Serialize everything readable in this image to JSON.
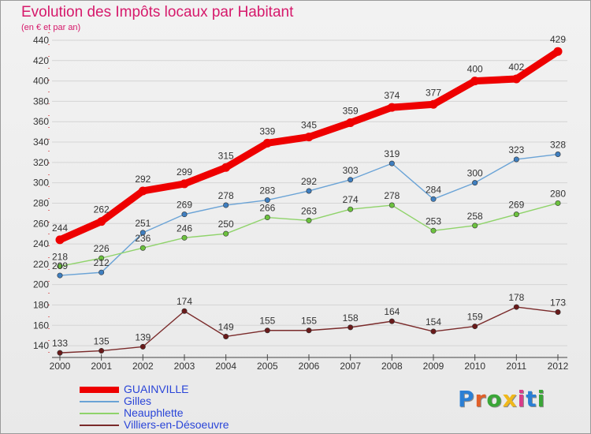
{
  "header": {
    "title": "Evolution des Impôts locaux par Habitant",
    "subtitle": "(en € et par an)"
  },
  "logo": {
    "text": "Proxiti",
    "letters": [
      "P",
      "r",
      "o",
      "x",
      "i",
      "t",
      "i"
    ],
    "letter_colors": [
      "#2b7fd4",
      "#e0602a",
      "#3aa637",
      "#f0b81a",
      "#d93c8a",
      "#2b7fd4",
      "#3aa637"
    ]
  },
  "chart_data": {
    "type": "line",
    "title": "Evolution des Impôts locaux par Habitant",
    "subtitle": "(en € et par an)",
    "xlabel": "",
    "ylabel": "",
    "x": [
      "2000",
      "2001",
      "2002",
      "2003",
      "2004",
      "2005",
      "2006",
      "2007",
      "2008",
      "2009",
      "2010",
      "2011",
      "2012"
    ],
    "ylim": [
      130,
      440
    ],
    "yticks": [
      140,
      160,
      180,
      200,
      220,
      240,
      260,
      280,
      300,
      320,
      340,
      360,
      380,
      400,
      420,
      440
    ],
    "grid": "horizontal",
    "legend_position": "bottom-left",
    "series": [
      {
        "name": "GUAINVILLE",
        "values": [
          244,
          262,
          292,
          299,
          315,
          339,
          345,
          359,
          374,
          377,
          400,
          402,
          429
        ],
        "color": "#ee0000",
        "marker": "#ee0000",
        "emphasis": true
      },
      {
        "name": "Gilles",
        "values": [
          209,
          212,
          251,
          269,
          278,
          283,
          292,
          303,
          319,
          284,
          300,
          323,
          328
        ],
        "color": "#6aa3d6",
        "marker": "#3f7fc0",
        "emphasis": false
      },
      {
        "name": "Neauphlette",
        "values": [
          218,
          226,
          236,
          246,
          250,
          266,
          263,
          274,
          278,
          253,
          258,
          269,
          280
        ],
        "color": "#8fd36a",
        "marker": "#6cc23e",
        "emphasis": false
      },
      {
        "name": "Villiers-en-Désoeuvre",
        "values": [
          133,
          135,
          139,
          174,
          149,
          155,
          155,
          158,
          164,
          154,
          159,
          178,
          173
        ],
        "color": "#7a2a2a",
        "marker": "#6a1a1a",
        "emphasis": false
      }
    ]
  }
}
